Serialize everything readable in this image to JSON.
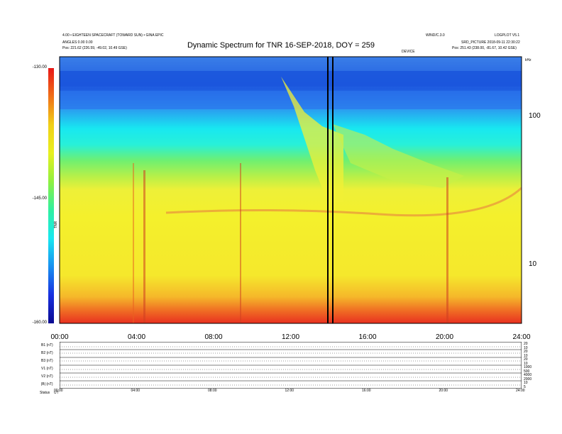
{
  "header": {
    "left_line1": "4.00 • EIGHTEEN SPACECRAFT (TOWARD SUN) • GINA EPIC",
    "left_line2": "ANGLES 0.00 0.00",
    "left_line3": "Pos:   221.62 (226.59, -49.02, 10.49 GSE)",
    "right_line1a": "WIND/C.3.0",
    "right_line1b": "LOGPLOT V5.1",
    "right_line2": "SRD_PICTURE  2018-09-11  22:30:22",
    "right_line3": "Pos:   251.43 (238.00, -81.67, 10.42 GSE)",
    "right_small": "DEVICE"
  },
  "title": "Dynamic Spectrum for TNR 16-SEP-2018, DOY = 259",
  "colorbar": {
    "label": "TNR",
    "ticks": [
      "-130.00",
      "-145.00",
      "-160.00"
    ]
  },
  "right_axis": {
    "unit": "kHz",
    "ticks": [
      "100",
      "10"
    ]
  },
  "bottom_panel": {
    "labels": [
      "B1 (nT)",
      "B2 (nT)",
      "B3 (nT)",
      "V1 (nT)",
      "V2 (nT)",
      "|B| (nT)"
    ],
    "right_ticks": [
      "20",
      "10",
      "20",
      "10",
      "20",
      "10",
      "1000",
      "500",
      "4000",
      "2000",
      "10",
      "5"
    ],
    "footer_left": "Status",
    "footer_left2": "UT"
  },
  "chart_data": {
    "type": "heatmap",
    "title": "Dynamic Spectrum for TNR 16-SEP-2018, DOY = 259",
    "x_ticks": [
      "00:00",
      "04:00",
      "08:00",
      "12:00",
      "16:00",
      "20:00",
      "24:00"
    ],
    "x_range_hours": [
      0,
      24
    ],
    "y_axis_right": {
      "scale": "log",
      "unit": "kHz",
      "ticks": [
        100,
        10
      ],
      "range": [
        4,
        256
      ]
    },
    "colorbar_range": [
      -160,
      -130
    ],
    "vertical_markers_hours": [
      13.95,
      14.2
    ],
    "bottom_x_ticks": [
      "00:00",
      "04:00",
      "08:00",
      "12:00",
      "16:00",
      "20:00",
      "24:00"
    ]
  }
}
